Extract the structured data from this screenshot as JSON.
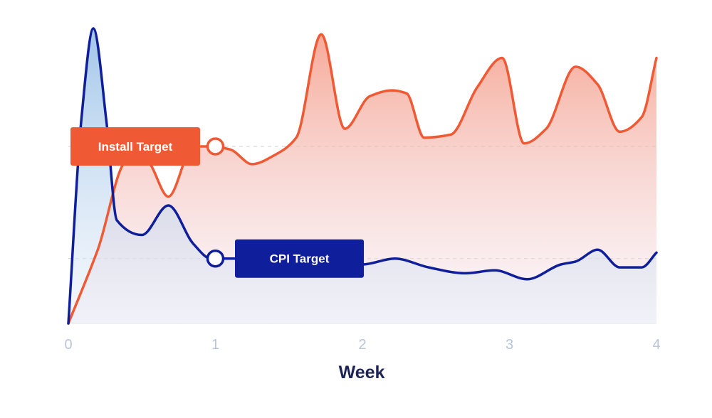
{
  "chart_data": {
    "type": "area",
    "xlabel": "Week",
    "ylabel": "",
    "xlim": [
      0,
      4
    ],
    "ylim": [
      0,
      100
    ],
    "x_ticks": [
      0,
      1,
      2,
      3,
      4
    ],
    "x_tick_labels": [
      "0",
      "1",
      "2",
      "3",
      "4"
    ],
    "grid": false,
    "colors": {
      "install": "#ef5a35",
      "install_fill": "#f6a08e",
      "cpi": "#0f1e9b",
      "cpi_fill": "#9ec3e6",
      "tick_label": "#b9c4da",
      "axis_title": "#1c2556",
      "target_line": "#cfcfcf",
      "baseline": "#e3e3e3"
    },
    "series": [
      {
        "id": "install",
        "x": [
          0,
          0.2,
          0.4,
          0.53,
          0.68,
          0.85,
          0.97,
          1.1,
          1.25,
          1.4,
          1.55,
          1.72,
          1.88,
          2.05,
          2.2,
          2.3,
          2.42,
          2.6,
          2.78,
          2.95,
          3.1,
          3.25,
          3.45,
          3.6,
          3.75,
          3.9,
          4.0
        ],
        "values": [
          0,
          25,
          55,
          55,
          43,
          60,
          60,
          59,
          54,
          57,
          63,
          98,
          66,
          77,
          79,
          78,
          63,
          64,
          80,
          90,
          61,
          66,
          87,
          81,
          65,
          70,
          90
        ]
      },
      {
        "id": "cpi",
        "x": [
          0,
          0.09,
          0.17,
          0.26,
          0.33,
          0.5,
          0.68,
          0.85,
          0.97,
          1.2,
          1.6,
          2.0,
          2.22,
          2.45,
          2.7,
          2.9,
          3.12,
          3.35,
          3.45,
          3.6,
          3.75,
          3.9,
          4.0
        ],
        "values": [
          0,
          70,
          100,
          68,
          35,
          30,
          40,
          27,
          22,
          22,
          20,
          20,
          22,
          19,
          17,
          18,
          15,
          20,
          21,
          25,
          19,
          19,
          24
        ]
      }
    ],
    "targets": [
      {
        "id": "install_target",
        "label": "Install Target",
        "value": 60
      },
      {
        "id": "cpi_target",
        "label": "CPI Target",
        "value": 22
      }
    ]
  }
}
